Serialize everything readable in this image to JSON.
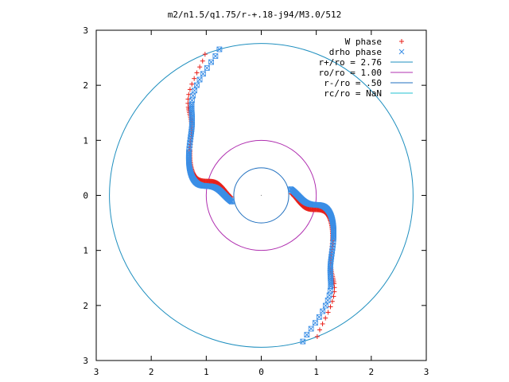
{
  "chart_data": {
    "type": "scatter",
    "title": "m2/n1.5/q1.75/r-+.18-j94/M3.0/512",
    "xlabel": "",
    "ylabel": "",
    "xlim": [
      -3,
      3
    ],
    "ylim": [
      -3,
      3
    ],
    "x_tick_labels": [
      "3",
      "2",
      "1",
      "0",
      "1",
      "2",
      "3"
    ],
    "y_tick_labels": [
      "3",
      "2",
      "1",
      "0",
      "1",
      "2",
      "3"
    ],
    "tick_values": [
      -3,
      -2,
      -1,
      0,
      1,
      2,
      3
    ],
    "grid": false,
    "legend_position": "top-right",
    "circles": [
      {
        "name": "r+/ro = 2.76",
        "radius": 2.76,
        "color": "#1f8fbf"
      },
      {
        "name": "ro/ro = 1.00",
        "radius": 1.0,
        "color": "#b030b0"
      },
      {
        "name": "r-/ro = .50",
        "radius": 0.5,
        "color": "#1f6fbf"
      },
      {
        "name": "rc/ro = NaN",
        "radius": null,
        "color": "#20c0d0"
      }
    ],
    "series": [
      {
        "name": "W phase",
        "marker": "plus",
        "color": "#e8201a",
        "arms": [
          {
            "from_r": 2.76,
            "to_r": 0.55,
            "a0": 1.95,
            "a1": 3.2,
            "kink": 0.55
          },
          {
            "from_r": 2.76,
            "to_r": 0.55,
            "a0": 5.09,
            "a1": 6.34,
            "kink": 0.55
          }
        ]
      },
      {
        "name": "drho phase",
        "marker": "cross",
        "color": "#3a8ee6",
        "arms": [
          {
            "from_r": 2.76,
            "to_r": 0.55,
            "a0": 1.85,
            "a1": 3.35,
            "kink": 0.6
          },
          {
            "from_r": 2.76,
            "to_r": 0.55,
            "a0": 4.99,
            "a1": 6.49,
            "kink": 0.6
          }
        ]
      }
    ]
  }
}
